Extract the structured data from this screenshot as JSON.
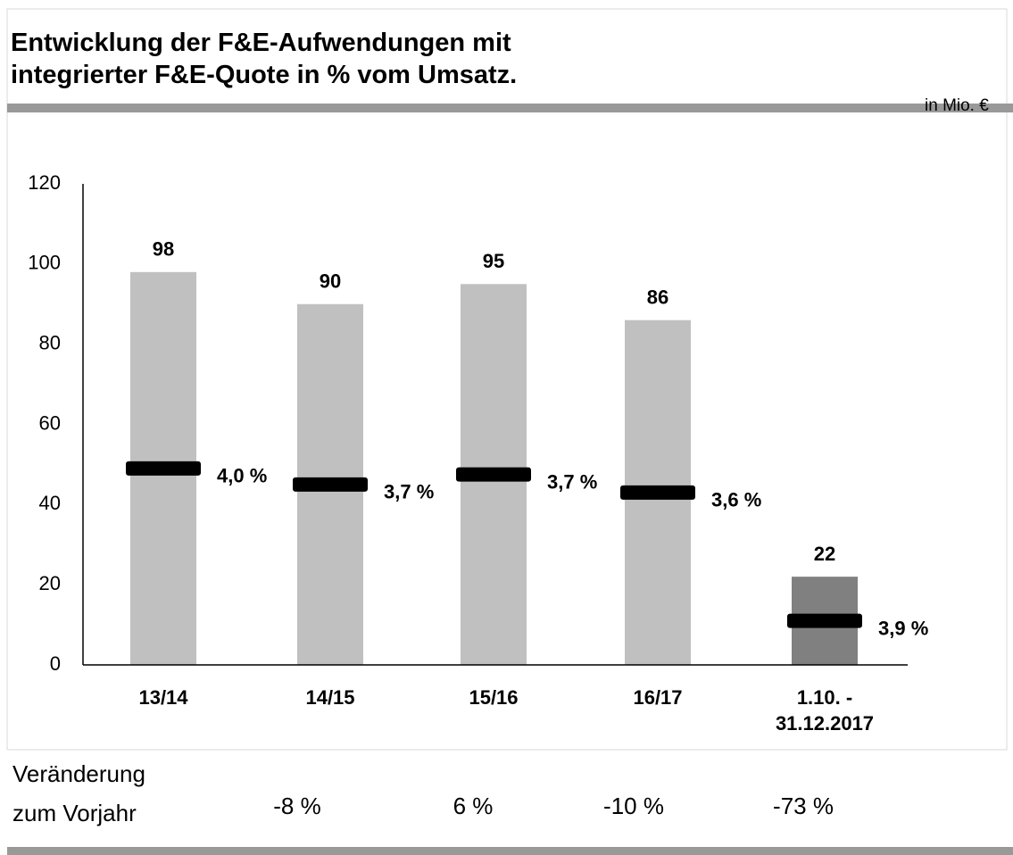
{
  "chart_data": {
    "type": "bar",
    "title": "Entwicklung der F&E-Aufwendungen mit\nintegrierter F&E-Quote in %  vom Umsatz.",
    "unit": "in Mio. €",
    "categories": [
      "13/14",
      "14/15",
      "15/16",
      "16/17",
      "1.10. -\n31.12.2017"
    ],
    "values": [
      98,
      90,
      95,
      86,
      22
    ],
    "colors": [
      "#c0c0c0",
      "#c0c0c0",
      "#c0c0c0",
      "#c0c0c0",
      "#808080"
    ],
    "quota": {
      "values": [
        4.0,
        3.7,
        3.7,
        3.6,
        3.9
      ],
      "value_labels": [
        "4,0 %",
        "3,7 %",
        "3,7 %",
        "3,6 %",
        "3,9 %"
      ],
      "color": "#000000"
    },
    "ylim": [
      0,
      120
    ],
    "yticks": [
      0,
      20,
      40,
      60,
      80,
      100,
      120
    ],
    "change": {
      "label": "Veränderung\nzum Vorjahr",
      "labels": [
        "-8 %",
        "6 %",
        "-10 %",
        "-73 %"
      ]
    }
  }
}
